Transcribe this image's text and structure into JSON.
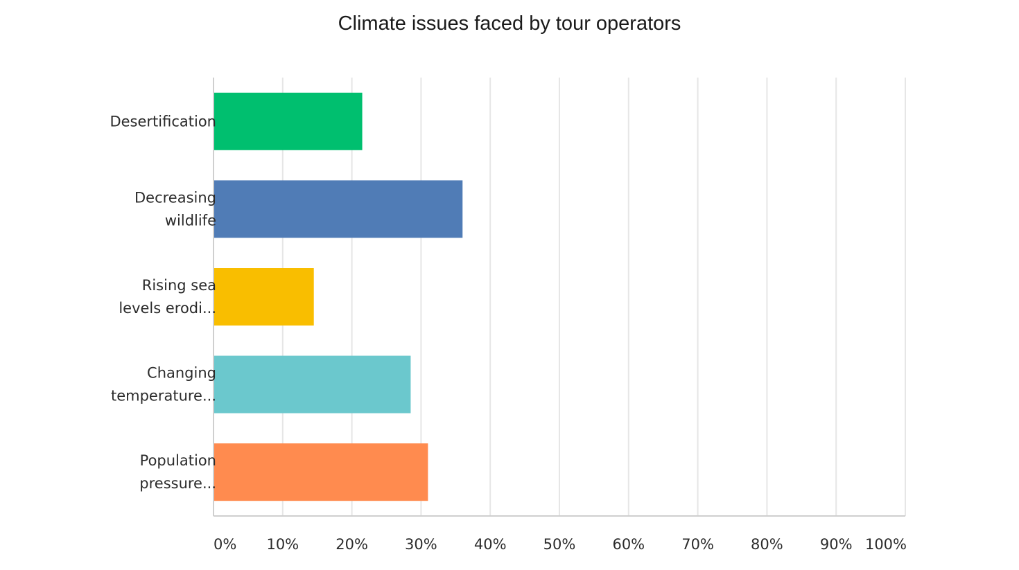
{
  "chart_data": {
    "type": "bar",
    "orientation": "horizontal",
    "title": "Climate issues faced by tour operators",
    "categories": [
      [
        "Desertification"
      ],
      [
        "Decreasing",
        "wildlife"
      ],
      [
        "Rising sea",
        "levels erodi..."
      ],
      [
        "Changing",
        "temperature..."
      ],
      [
        "Population",
        "pressure..."
      ]
    ],
    "values": [
      21.5,
      36,
      14.5,
      28.5,
      31
    ],
    "colors": [
      "#00bf6f",
      "#507cb6",
      "#f9be00",
      "#6bc8cd",
      "#ff8b4f"
    ],
    "xlim": [
      0,
      100
    ],
    "x_ticks": [
      "0%",
      "10%",
      "20%",
      "30%",
      "40%",
      "50%",
      "60%",
      "70%",
      "80%",
      "90%",
      "100%"
    ],
    "grid": true,
    "legend": "none"
  }
}
